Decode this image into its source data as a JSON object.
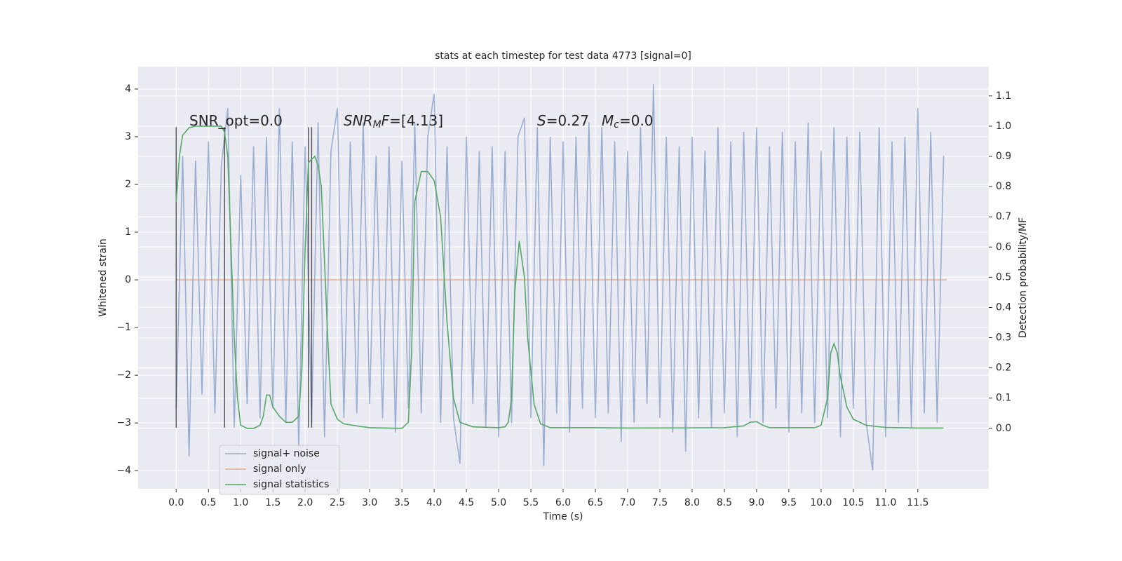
{
  "chart_data": {
    "type": "line",
    "title": "stats at each timestep for test data 4773 [signal=0]",
    "xlabel": "Time (s)",
    "ylabel": "Whitened strain",
    "y2label": "Detection probability/MF",
    "background": "#eaeaf2",
    "grid": true,
    "legend": "lower left",
    "xlim": [
      -0.59,
      12.6
    ],
    "ylim": [
      -4.38,
      4.47
    ],
    "y2lim": [
      -0.2,
      1.197
    ],
    "xticks": [
      {
        "value": 0,
        "label": "0.0"
      },
      0.5,
      {
        "value": 1,
        "label": "1.0"
      },
      1.5,
      {
        "value": 2,
        "label": "2.0"
      },
      2.5,
      {
        "value": 3,
        "label": "3.0"
      },
      3.5,
      {
        "value": 4,
        "label": "4.0"
      },
      4.5,
      {
        "value": 5,
        "label": "5.0"
      },
      5.5,
      {
        "value": 6,
        "label": "6.0"
      },
      6.5,
      {
        "value": 7,
        "label": "7.0"
      },
      7.5,
      {
        "value": 8,
        "label": "8.0"
      },
      8.5,
      {
        "value": 9,
        "label": "9.0"
      },
      9.5,
      {
        "value": 10,
        "label": "10.0"
      },
      10.5,
      {
        "value": 11,
        "label": "11.0"
      },
      11.5
    ],
    "yticks": [
      {
        "value": -4,
        "label": "−4"
      },
      {
        "value": -3,
        "label": "−3"
      },
      {
        "value": -2,
        "label": "−2"
      },
      {
        "value": -1,
        "label": "−1"
      },
      0,
      1,
      2,
      3,
      4
    ],
    "y2ticks": [
      {
        "value": 0,
        "label": "0.0"
      },
      0.1,
      0.2,
      0.3,
      0.4,
      0.5,
      0.6,
      0.7,
      0.8,
      0.9,
      {
        "value": 1,
        "label": "1.0"
      },
      1.1
    ],
    "series": [
      {
        "name": "signal+ noise",
        "color": "#4c72b0",
        "opacity": 0.5,
        "x": [
          0.0,
          0.1,
          0.2,
          0.3,
          0.4,
          0.5,
          0.6,
          0.7,
          0.8,
          0.9,
          1.0,
          1.1,
          1.2,
          1.3,
          1.4,
          1.5,
          1.6,
          1.7,
          1.8,
          1.9,
          2.0,
          2.1,
          2.2,
          2.3,
          2.4,
          2.5,
          2.6,
          2.7,
          2.8,
          2.9,
          3.0,
          3.1,
          3.2,
          3.3,
          3.4,
          3.5,
          3.6,
          3.7,
          3.8,
          3.9,
          4.0,
          4.1,
          4.2,
          4.3,
          4.4,
          4.5,
          4.6,
          4.7,
          4.8,
          4.9,
          5.0,
          5.1,
          5.2,
          5.3,
          5.4,
          5.5,
          5.6,
          5.7,
          5.8,
          5.9,
          6.0,
          6.1,
          6.2,
          6.3,
          6.4,
          6.5,
          6.6,
          6.7,
          6.8,
          6.9,
          7.0,
          7.1,
          7.2,
          7.3,
          7.4,
          7.5,
          7.6,
          7.7,
          7.8,
          7.9,
          8.0,
          8.1,
          8.2,
          8.3,
          8.4,
          8.5,
          8.6,
          8.7,
          8.8,
          8.9,
          9.0,
          9.1,
          9.2,
          9.3,
          9.4,
          9.5,
          9.6,
          9.7,
          9.8,
          9.9,
          10.0,
          10.1,
          10.2,
          10.3,
          10.4,
          10.5,
          10.6,
          10.7,
          10.8,
          10.9,
          11.0,
          11.1,
          11.2,
          11.3,
          11.4,
          11.5,
          11.6,
          11.7,
          11.8,
          11.9
        ],
        "values": [
          -2.7,
          2.6,
          -3.7,
          2.5,
          -2.4,
          2.9,
          -2.8,
          2.4,
          3.6,
          -3.1,
          2.2,
          -2.6,
          2.8,
          -2.9,
          3.0,
          -2.7,
          3.6,
          -3.0,
          2.9,
          -3.5,
          2.8,
          -3.0,
          3.3,
          -3.3,
          2.7,
          3.6,
          -2.9,
          2.9,
          -2.8,
          3.3,
          -2.6,
          2.6,
          -2.9,
          2.8,
          -3.2,
          2.5,
          -2.7,
          3.3,
          -2.8,
          3.0,
          3.9,
          -3.0,
          2.8,
          -2.9,
          -3.85,
          3.0,
          -2.6,
          2.7,
          -3.1,
          2.8,
          -3.3,
          2.7,
          -3.0,
          3.0,
          3.4,
          -2.9,
          3.2,
          -3.9,
          3.0,
          -2.8,
          2.9,
          -3.2,
          3.0,
          -2.7,
          3.3,
          -2.9,
          3.2,
          -2.8,
          2.9,
          -3.4,
          2.7,
          -3.0,
          3.2,
          -2.6,
          4.1,
          -2.9,
          3.0,
          -3.2,
          2.8,
          -3.6,
          3.0,
          -2.9,
          2.7,
          -3.1,
          3.2,
          -2.8,
          2.9,
          -3.3,
          3.1,
          -2.9,
          3.2,
          -3.0,
          2.8,
          -2.7,
          3.1,
          -3.2,
          2.9,
          -2.8,
          3.3,
          -3.0,
          2.7,
          -2.9,
          3.2,
          -3.3,
          3.0,
          -2.7,
          3.1,
          -3.0,
          -4.0,
          3.2,
          -3.3,
          2.9,
          -3.0,
          3.0,
          -3.1,
          3.6,
          -2.8,
          3.1,
          -3.0,
          2.6
        ]
      },
      {
        "name": "signal only",
        "color": "#dd8452",
        "opacity": 0.6,
        "x": [
          0.0,
          11.95
        ],
        "values": [
          0,
          0
        ]
      },
      {
        "name": "signal statistics",
        "color": "#55a868",
        "opacity": 1,
        "axis": "y2",
        "x": [
          0.0,
          0.05,
          0.1,
          0.2,
          0.3,
          0.5,
          0.7,
          0.75,
          0.8,
          0.85,
          0.9,
          0.95,
          1.0,
          1.1,
          1.2,
          1.3,
          1.35,
          1.4,
          1.45,
          1.5,
          1.6,
          1.7,
          1.8,
          1.9,
          1.95,
          2.0,
          2.05,
          2.15,
          2.2,
          2.25,
          2.3,
          2.35,
          2.4,
          2.5,
          2.6,
          2.8,
          3.0,
          3.5,
          3.6,
          3.65,
          3.7,
          3.8,
          3.9,
          4.0,
          4.1,
          4.2,
          4.3,
          4.4,
          4.6,
          5.0,
          5.1,
          5.15,
          5.2,
          5.25,
          5.32,
          5.4,
          5.45,
          5.55,
          5.65,
          5.8,
          6.5,
          7.0,
          8.5,
          8.8,
          8.9,
          9.0,
          9.1,
          9.2,
          9.9,
          10.0,
          10.1,
          10.15,
          10.2,
          10.25,
          10.3,
          10.4,
          10.5,
          10.7,
          11.0,
          11.5,
          11.9
        ],
        "values": [
          0.75,
          0.9,
          0.97,
          0.995,
          1.0,
          1.0,
          1.0,
          0.98,
          0.9,
          0.6,
          0.3,
          0.1,
          0.01,
          0.0,
          0.0,
          0.01,
          0.04,
          0.11,
          0.11,
          0.07,
          0.04,
          0.02,
          0.02,
          0.04,
          0.2,
          0.6,
          0.88,
          0.9,
          0.87,
          0.8,
          0.55,
          0.3,
          0.08,
          0.03,
          0.015,
          0.008,
          0.002,
          0.0,
          0.02,
          0.25,
          0.75,
          0.85,
          0.85,
          0.82,
          0.7,
          0.35,
          0.1,
          0.02,
          0.005,
          0.002,
          0.005,
          0.02,
          0.1,
          0.45,
          0.62,
          0.5,
          0.3,
          0.08,
          0.015,
          0.002,
          0.002,
          0.001,
          0.002,
          0.008,
          0.02,
          0.022,
          0.01,
          0.002,
          0.002,
          0.01,
          0.1,
          0.25,
          0.28,
          0.25,
          0.17,
          0.07,
          0.03,
          0.01,
          0.003,
          0.001,
          0.001
        ]
      }
    ],
    "vlines": {
      "x": [
        0.0,
        0.75,
        2.05,
        2.1
      ],
      "ymin": -3.1,
      "ymax": 3.2,
      "color": "#333333"
    },
    "annotations": [
      [
        {
          "text": "SNR_opt=0.0"
        }
      ],
      [
        {
          "text": "SNR",
          "style": "italic"
        },
        {
          "text": "M",
          "style": "sub"
        },
        {
          "text": "F",
          "style": "italic"
        },
        {
          "text": "=[4.13]"
        }
      ],
      [
        {
          "text": "S",
          "style": "italic"
        },
        {
          "text": "=0.27"
        }
      ],
      [
        {
          "text": "M",
          "style": "italic"
        },
        {
          "text": "c",
          "style": "sub"
        },
        {
          "text": "=0.0"
        }
      ]
    ]
  }
}
